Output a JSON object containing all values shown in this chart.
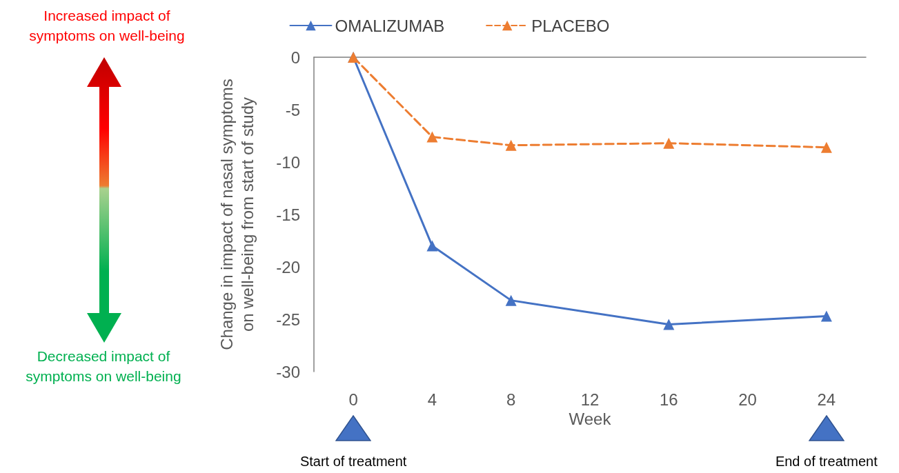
{
  "chart_data": {
    "type": "line",
    "xlabel": "Week",
    "ylabel": "Change in impact of nasal symptoms on well-being from start of study",
    "x": [
      0,
      4,
      8,
      16,
      24
    ],
    "series": [
      {
        "name": "OMALIZUMAB",
        "color": "#4472c4",
        "values": [
          0,
          -18,
          -23.2,
          -25.5,
          -24.7
        ],
        "line_style": "solid"
      },
      {
        "name": "PLACEBO",
        "color": "#ed7d31",
        "values": [
          0,
          -7.6,
          -8.4,
          -8.2,
          -8.6
        ],
        "line_style": "dashed"
      }
    ],
    "xlim": [
      -2,
      26
    ],
    "xticks": [
      0,
      4,
      8,
      12,
      16,
      20,
      24
    ],
    "ylim": [
      -30,
      0
    ],
    "yticks": [
      -30,
      -25,
      -20,
      -15,
      -10,
      -5,
      0
    ],
    "grid": false,
    "legend": "top",
    "marker": "triangle",
    "annotations": [
      "Increased impact of symptoms on well-being",
      "Decreased impact of symptoms on well-being",
      "Start of treatment",
      "End of treatment"
    ]
  }
}
